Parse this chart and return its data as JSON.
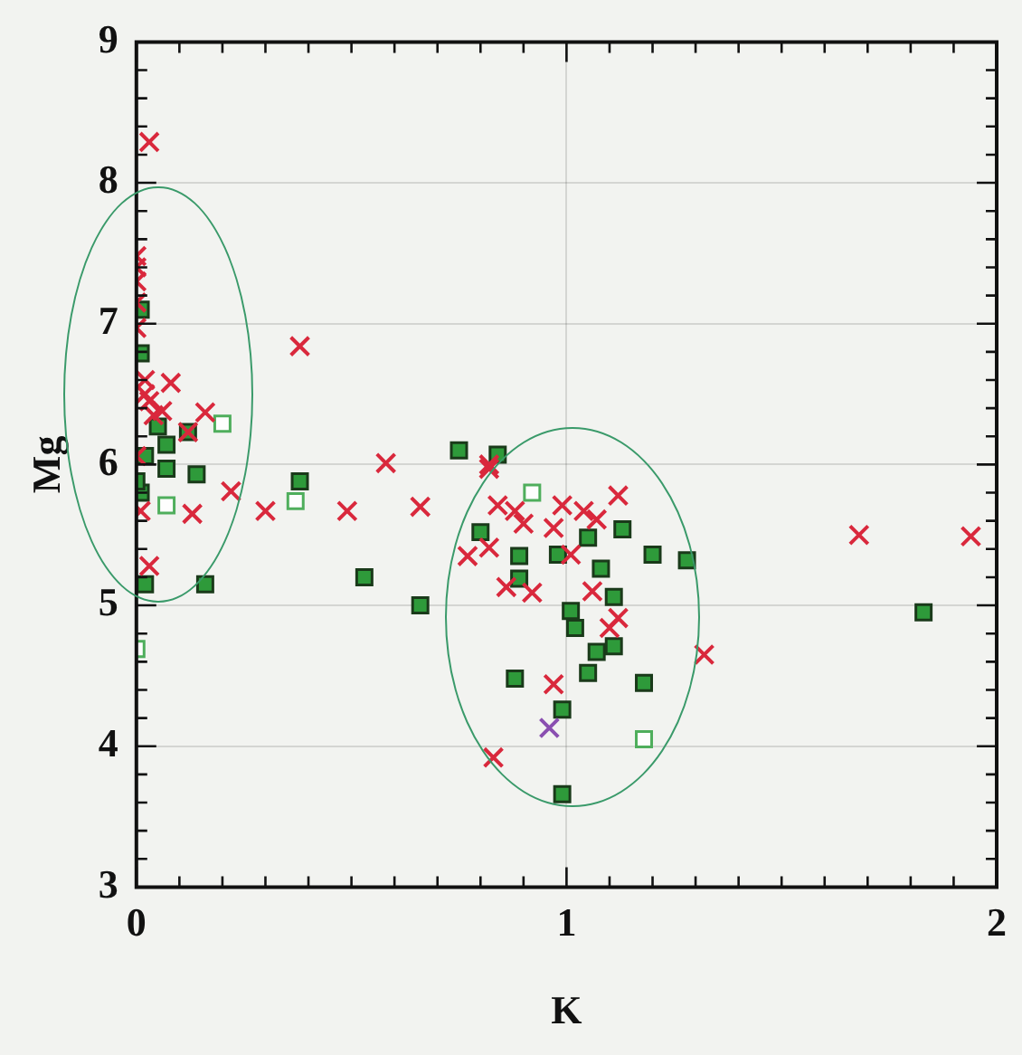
{
  "chart_data": {
    "type": "scatter",
    "xlabel": "K",
    "ylabel": "Mg",
    "xlim": [
      0,
      2
    ],
    "ylim": [
      3,
      9
    ],
    "xticks": [
      0,
      {
        "value": 0.1,
        "label": null
      },
      {
        "value": 0.2,
        "label": null
      },
      {
        "value": 0.3,
        "label": null
      },
      {
        "value": 0.4,
        "label": null
      },
      {
        "value": 0.5,
        "label": null
      },
      {
        "value": 0.6,
        "label": null
      },
      {
        "value": 0.7,
        "label": null
      },
      {
        "value": 0.8,
        "label": null
      },
      {
        "value": 0.9,
        "label": null
      },
      1,
      {
        "value": 1.1,
        "label": null
      },
      {
        "value": 1.2,
        "label": null
      },
      {
        "value": 1.3,
        "label": null
      },
      {
        "value": 1.4,
        "label": null
      },
      {
        "value": 1.5,
        "label": null
      },
      {
        "value": 1.6,
        "label": null
      },
      {
        "value": 1.7,
        "label": null
      },
      {
        "value": 1.8,
        "label": null
      },
      {
        "value": 1.9,
        "label": null
      },
      2
    ],
    "yticks": [
      3,
      {
        "value": 3.2,
        "label": null
      },
      {
        "value": 3.4,
        "label": null
      },
      {
        "value": 3.6,
        "label": null
      },
      {
        "value": 3.8,
        "label": null
      },
      4,
      {
        "value": 4.2,
        "label": null
      },
      {
        "value": 4.4,
        "label": null
      },
      {
        "value": 4.6,
        "label": null
      },
      {
        "value": 4.8,
        "label": null
      },
      5,
      {
        "value": 5.2,
        "label": null
      },
      {
        "value": 5.4,
        "label": null
      },
      {
        "value": 5.6,
        "label": null
      },
      {
        "value": 5.8,
        "label": null
      },
      6,
      {
        "value": 6.2,
        "label": null
      },
      {
        "value": 6.4,
        "label": null
      },
      {
        "value": 6.6,
        "label": null
      },
      {
        "value": 6.8,
        "label": null
      },
      7,
      {
        "value": 7.2,
        "label": null
      },
      {
        "value": 7.4,
        "label": null
      },
      {
        "value": 7.6,
        "label": null
      },
      {
        "value": 7.8,
        "label": null
      },
      8,
      {
        "value": 8.2,
        "label": null
      },
      {
        "value": 8.4,
        "label": null
      },
      {
        "value": 8.6,
        "label": null
      },
      {
        "value": 8.8,
        "label": null
      },
      9
    ],
    "grid": true,
    "legend": false,
    "series": [
      {
        "color": "#2e9a3a",
        "marker": "square",
        "x": [
          0.01,
          0.01,
          0.05,
          0.07,
          0.02,
          0.07,
          0.01,
          0.0,
          0.14,
          0.12,
          0.02,
          0.16,
          0.38,
          0.53,
          0.66,
          0.75,
          0.84,
          0.8,
          0.89,
          0.89,
          0.98,
          1.05,
          1.08,
          1.13,
          1.2,
          1.28,
          1.01,
          1.02,
          1.11,
          1.07,
          1.05,
          1.11,
          0.88,
          1.18,
          0.99,
          0.99,
          1.83
        ],
        "values": [
          7.1,
          6.79,
          6.27,
          6.14,
          6.06,
          5.97,
          5.8,
          5.88,
          5.93,
          6.23,
          5.15,
          5.15,
          5.88,
          5.2,
          5.0,
          6.1,
          6.07,
          5.52,
          5.35,
          5.19,
          5.36,
          5.48,
          5.26,
          5.54,
          5.36,
          5.32,
          4.96,
          4.84,
          5.06,
          4.67,
          4.52,
          4.71,
          4.48,
          4.45,
          4.26,
          3.66,
          4.95
        ]
      },
      {
        "color": "#4fae5c",
        "marker": "square",
        "x": [
          0.2,
          0.07,
          0.37,
          0.0,
          0.92,
          1.18
        ],
        "values": [
          6.29,
          5.71,
          5.74,
          4.69,
          5.8,
          4.05
        ]
      },
      {
        "color": "#d9283c",
        "marker": "cross",
        "x": [
          0.03,
          0.0,
          0.0,
          0.0,
          0.0,
          0.0,
          0.38,
          0.08,
          0.16,
          0.06,
          0.02,
          0.03,
          0.04,
          0.02,
          0.58,
          0.22,
          0.13,
          0.3,
          0.49,
          0.66,
          0.03,
          0.01,
          0.0,
          0.12,
          0.82,
          0.82,
          0.84,
          0.88,
          0.77,
          0.82,
          0.9,
          0.86,
          0.92,
          0.97,
          0.99,
          1.04,
          1.07,
          1.12,
          1.01,
          1.06,
          1.12,
          1.1,
          0.97,
          0.83,
          1.32,
          1.68,
          1.94
        ],
        "values": [
          8.29,
          7.48,
          7.4,
          7.3,
          7.15,
          6.97,
          6.84,
          6.58,
          6.37,
          6.38,
          6.6,
          6.45,
          6.35,
          6.5,
          6.01,
          5.81,
          5.65,
          5.67,
          5.67,
          5.7,
          5.28,
          5.67,
          6.06,
          6.23,
          6.0,
          5.97,
          5.71,
          5.67,
          5.35,
          5.41,
          5.58,
          5.13,
          5.09,
          5.55,
          5.71,
          5.67,
          5.61,
          5.78,
          5.36,
          5.1,
          4.91,
          4.84,
          4.44,
          3.92,
          4.65,
          5.5,
          5.49
        ]
      },
      {
        "color": "#8a4fb0",
        "marker": "cross",
        "x": [
          0.96
        ],
        "values": [
          4.13
        ]
      }
    ]
  }
}
